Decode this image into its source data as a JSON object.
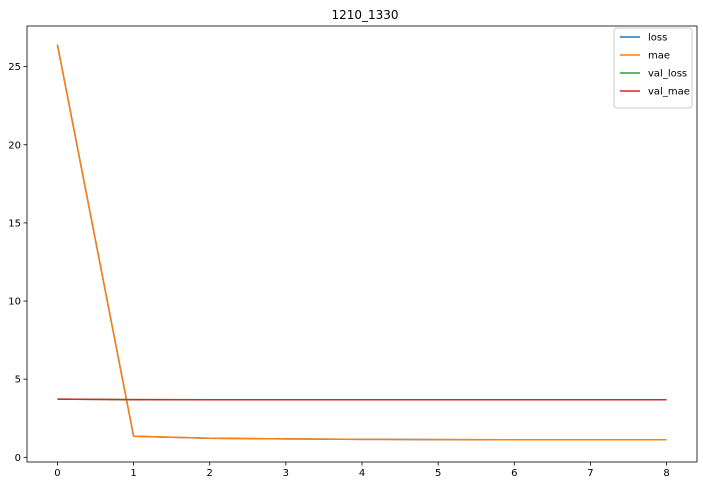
{
  "chart_data": {
    "type": "line",
    "title": "1210_1330",
    "xlabel": "",
    "ylabel": "",
    "x": [
      0,
      1,
      2,
      3,
      4,
      5,
      6,
      7,
      8
    ],
    "xlim": [
      -0.4,
      8.4
    ],
    "ylim": [
      -0.3,
      27.6
    ],
    "xticks": [
      0,
      1,
      2,
      3,
      4,
      5,
      6,
      7,
      8
    ],
    "yticks": [
      0,
      5,
      10,
      15,
      20,
      25
    ],
    "grid": false,
    "legend_position": "top-right",
    "series": [
      {
        "name": "loss",
        "color": "#1f77b4",
        "values": [
          26.4,
          1.35,
          1.22,
          1.18,
          1.15,
          1.13,
          1.12,
          1.12,
          1.12
        ]
      },
      {
        "name": "mae",
        "color": "#ff7f0e",
        "values": [
          26.4,
          1.35,
          1.22,
          1.18,
          1.15,
          1.13,
          1.12,
          1.12,
          1.12
        ]
      },
      {
        "name": "val_loss",
        "color": "#2ca02c",
        "values": [
          3.72,
          3.69,
          3.68,
          3.68,
          3.68,
          3.68,
          3.68,
          3.68,
          3.68
        ]
      },
      {
        "name": "val_mae",
        "color": "#d62728",
        "values": [
          3.72,
          3.69,
          3.68,
          3.68,
          3.68,
          3.68,
          3.68,
          3.68,
          3.68
        ]
      }
    ]
  }
}
